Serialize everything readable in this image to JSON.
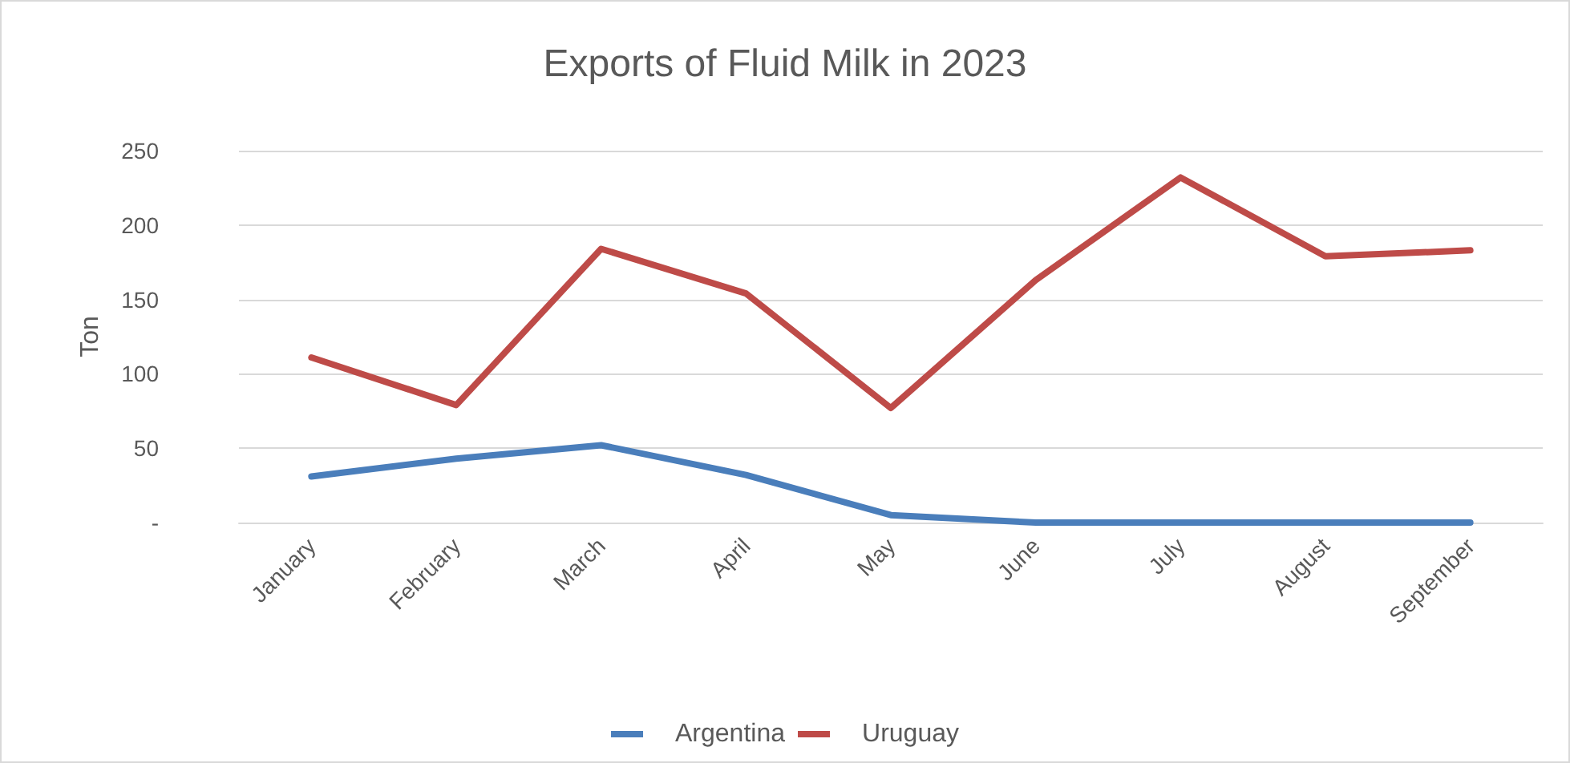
{
  "chart_data": {
    "type": "line",
    "title": "Exports of Fluid Milk in 2023",
    "ylabel": "Ton",
    "categories": [
      "January",
      "February",
      "March",
      "April",
      "May",
      "June",
      "July",
      "August",
      "September"
    ],
    "series": [
      {
        "name": "Argentina",
        "color": "#4a7ebb",
        "values": [
          31,
          43,
          52,
          32,
          5,
          0,
          0,
          0,
          0
        ]
      },
      {
        "name": "Uruguay",
        "color": "#be4b48",
        "values": [
          111,
          79,
          184,
          154,
          77,
          163,
          232,
          179,
          183
        ]
      }
    ],
    "ylim": [
      0,
      250
    ],
    "yticks": [
      {
        "value": 0,
        "label": "-"
      },
      50,
      100,
      150,
      200,
      250
    ],
    "grid": "y",
    "legend": "bottom",
    "marker": "none",
    "line_style": "solid"
  }
}
